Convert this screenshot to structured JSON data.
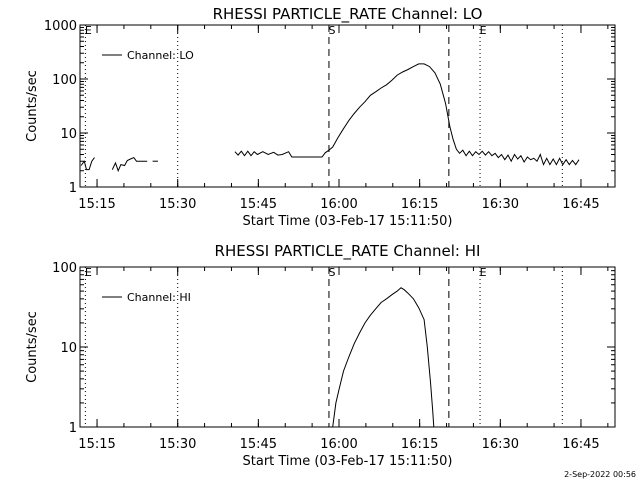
{
  "chart_data": [
    {
      "type": "line",
      "title": "RHESSI PARTICLE_RATE Channel: LO",
      "xlabel": "Start Time (03-Feb-17 15:11:50)",
      "ylabel": "Counts/sec",
      "x_units": "minutes after 15:11:50",
      "xlim": [
        0.0,
        99.5
      ],
      "x_ticks": [
        {
          "x": 3.17,
          "label": "15:15"
        },
        {
          "x": 18.17,
          "label": "15:30"
        },
        {
          "x": 33.17,
          "label": "15:45"
        },
        {
          "x": 48.17,
          "label": "16:00"
        },
        {
          "x": 63.17,
          "label": "16:15"
        },
        {
          "x": 78.17,
          "label": "16:30"
        },
        {
          "x": 93.17,
          "label": "16:45"
        }
      ],
      "y_scale": "log",
      "ylim": [
        1,
        1000
      ],
      "y_ticks": [
        {
          "y": 1,
          "label": "1"
        },
        {
          "y": 10,
          "label": "10"
        },
        {
          "y": 100,
          "label": "100"
        },
        {
          "y": 1000,
          "label": "1000"
        }
      ],
      "legend": {
        "position": "top-left",
        "entries": [
          "Channel: LO"
        ]
      },
      "vlines": [
        {
          "x": 1.0,
          "style": "dotted",
          "label": "E"
        },
        {
          "x": 18.17,
          "style": "dotted",
          "label": ""
        },
        {
          "x": 46.3,
          "style": "dashed",
          "label": "S"
        },
        {
          "x": 68.6,
          "style": "dashed",
          "label": ""
        },
        {
          "x": 74.4,
          "style": "dotted",
          "label": "E"
        },
        {
          "x": 89.7,
          "style": "dotted",
          "label": ""
        }
      ],
      "series": [
        {
          "name": "Channel: LO",
          "segments": [
            [
              [
                0.2,
                2.5
              ],
              [
                0.8,
                3.0
              ],
              [
                1.2,
                2.1
              ],
              [
                1.7,
                2.1
              ],
              [
                2.2,
                3.0
              ],
              [
                2.7,
                3.5
              ]
            ],
            [
              [
                6.0,
                2.1
              ],
              [
                6.6,
                2.8
              ],
              [
                7.1,
                2.0
              ],
              [
                7.6,
                2.6
              ],
              [
                8.3,
                2.5
              ],
              [
                8.8,
                3.1
              ],
              [
                9.4,
                3.3
              ],
              [
                10.0,
                3.5
              ],
              [
                10.5,
                3.0
              ],
              [
                11.5,
                3.0
              ],
              [
                12.5,
                3.0
              ]
            ],
            [
              [
                13.5,
                3.0
              ],
              [
                14.5,
                3.0
              ]
            ],
            [
              [
                28.8,
                4.5
              ],
              [
                29.4,
                3.9
              ],
              [
                30.0,
                4.6
              ],
              [
                30.6,
                3.8
              ],
              [
                31.2,
                4.6
              ],
              [
                31.8,
                3.8
              ],
              [
                32.4,
                4.5
              ],
              [
                33.0,
                4.0
              ],
              [
                34.0,
                4.5
              ],
              [
                35.0,
                4.0
              ],
              [
                36.0,
                4.4
              ],
              [
                36.8,
                3.9
              ],
              [
                37.6,
                4.0
              ],
              [
                38.8,
                4.5
              ],
              [
                39.4,
                3.6
              ],
              [
                41.0,
                3.6
              ],
              [
                43.0,
                3.6
              ],
              [
                45.0,
                3.6
              ],
              [
                45.6,
                4.3
              ],
              [
                46.3,
                4.8
              ],
              [
                47.0,
                5.5
              ],
              [
                48.0,
                8.3
              ],
              [
                49.0,
                12.0
              ],
              [
                50.0,
                17.0
              ],
              [
                51.0,
                23.0
              ],
              [
                52.0,
                30.0
              ],
              [
                53.0,
                38.0
              ],
              [
                54.0,
                50.0
              ],
              [
                55.0,
                58.0
              ],
              [
                56.0,
                68.0
              ],
              [
                57.0,
                78.0
              ],
              [
                58.0,
                95.0
              ],
              [
                59.0,
                118.0
              ],
              [
                60.0,
                135.0
              ],
              [
                61.0,
                150.0
              ],
              [
                62.0,
                170.0
              ],
              [
                63.0,
                190.0
              ],
              [
                64.0,
                190.0
              ],
              [
                65.0,
                170.0
              ],
              [
                66.0,
                130.0
              ],
              [
                67.0,
                80.0
              ],
              [
                68.0,
                35.0
              ],
              [
                68.8,
                13.0
              ],
              [
                69.4,
                7.5
              ],
              [
                70.0,
                5.0
              ],
              [
                70.6,
                4.2
              ],
              [
                71.2,
                4.8
              ],
              [
                71.8,
                3.8
              ],
              [
                72.4,
                4.6
              ],
              [
                73.0,
                3.8
              ],
              [
                73.6,
                4.5
              ],
              [
                74.2,
                4.0
              ],
              [
                74.8,
                4.6
              ],
              [
                75.4,
                3.9
              ],
              [
                76.0,
                4.5
              ],
              [
                76.6,
                3.8
              ],
              [
                77.2,
                4.2
              ],
              [
                77.8,
                3.5
              ],
              [
                78.4,
                4.0
              ],
              [
                79.0,
                3.2
              ],
              [
                79.6,
                3.9
              ],
              [
                80.2,
                3.0
              ],
              [
                80.8,
                4.0
              ],
              [
                81.4,
                3.3
              ],
              [
                82.0,
                3.8
              ],
              [
                82.6,
                2.9
              ],
              [
                83.2,
                3.6
              ],
              [
                83.8,
                3.2
              ],
              [
                84.4,
                3.4
              ],
              [
                85.0,
                3.0
              ],
              [
                85.6,
                4.0
              ],
              [
                86.2,
                2.6
              ],
              [
                86.8,
                3.4
              ],
              [
                87.4,
                2.6
              ],
              [
                88.0,
                3.3
              ],
              [
                88.6,
                2.6
              ],
              [
                89.2,
                3.4
              ],
              [
                89.8,
                2.6
              ],
              [
                90.4,
                3.2
              ],
              [
                91.0,
                2.6
              ],
              [
                91.6,
                3.1
              ],
              [
                92.2,
                2.6
              ],
              [
                92.8,
                3.2
              ]
            ]
          ]
        }
      ]
    },
    {
      "type": "line",
      "title": "RHESSI PARTICLE_RATE Channel: HI",
      "xlabel": "Start Time (03-Feb-17 15:11:50)",
      "ylabel": "Counts/sec",
      "x_units": "minutes after 15:11:50",
      "xlim": [
        0.0,
        99.5
      ],
      "x_ticks": [
        {
          "x": 3.17,
          "label": "15:15"
        },
        {
          "x": 18.17,
          "label": "15:30"
        },
        {
          "x": 33.17,
          "label": "15:45"
        },
        {
          "x": 48.17,
          "label": "16:00"
        },
        {
          "x": 63.17,
          "label": "16:15"
        },
        {
          "x": 78.17,
          "label": "16:30"
        },
        {
          "x": 93.17,
          "label": "16:45"
        }
      ],
      "y_scale": "log",
      "ylim": [
        1,
        100
      ],
      "y_ticks": [
        {
          "y": 1,
          "label": "1"
        },
        {
          "y": 10,
          "label": "10"
        },
        {
          "y": 100,
          "label": "100"
        }
      ],
      "legend": {
        "position": "top-left",
        "entries": [
          "Channel: HI"
        ]
      },
      "vlines": [
        {
          "x": 1.0,
          "style": "dotted",
          "label": "E"
        },
        {
          "x": 18.17,
          "style": "dotted",
          "label": ""
        },
        {
          "x": 46.3,
          "style": "dashed",
          "label": "S"
        },
        {
          "x": 68.6,
          "style": "dashed",
          "label": ""
        },
        {
          "x": 74.4,
          "style": "dotted",
          "label": "E"
        },
        {
          "x": 89.7,
          "style": "dotted",
          "label": ""
        }
      ],
      "series": [
        {
          "name": "Channel: HI",
          "segments": [
            [
              [
                47.0,
                1.0
              ],
              [
                47.6,
                2.0
              ],
              [
                48.2,
                3.0
              ],
              [
                49.0,
                5.0
              ],
              [
                50.0,
                7.5
              ],
              [
                51.0,
                11.0
              ],
              [
                52.0,
                15.0
              ],
              [
                53.0,
                20.0
              ],
              [
                54.0,
                25.0
              ],
              [
                55.0,
                30.0
              ],
              [
                56.0,
                36.0
              ],
              [
                57.0,
                40.0
              ],
              [
                58.0,
                45.0
              ],
              [
                59.0,
                50.0
              ],
              [
                59.7,
                55.0
              ],
              [
                60.3,
                52.0
              ],
              [
                61.0,
                47.0
              ],
              [
                62.0,
                40.0
              ],
              [
                63.0,
                31.0
              ],
              [
                64.0,
                22.0
              ],
              [
                64.6,
                10.0
              ],
              [
                65.2,
                3.5
              ],
              [
                65.6,
                1.6
              ],
              [
                65.8,
                1.0
              ]
            ]
          ]
        }
      ]
    }
  ],
  "footer": {
    "stamp": "2-Sep-2022 00:56"
  }
}
